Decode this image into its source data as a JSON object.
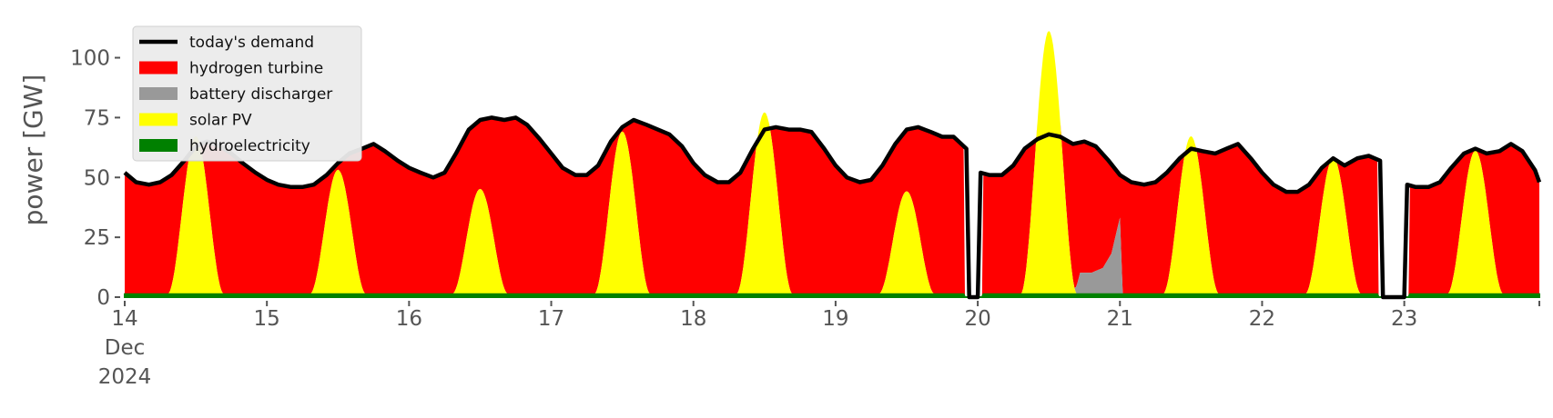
{
  "chart_data": {
    "type": "area",
    "title": "",
    "xlabel": "",
    "ylabel": "power [GW]",
    "x_unit": "days since 14 Dec 2024 00:00 (hourly samples)",
    "xlim": [
      0,
      9.95
    ],
    "ylim": [
      0,
      115
    ],
    "x_ticks": [
      {
        "x": 0,
        "lines": [
          "14",
          "Dec",
          "2024"
        ]
      },
      {
        "x": 1,
        "lines": [
          "15"
        ]
      },
      {
        "x": 2,
        "lines": [
          "16"
        ]
      },
      {
        "x": 3,
        "lines": [
          "17"
        ]
      },
      {
        "x": 4,
        "lines": [
          "18"
        ]
      },
      {
        "x": 5,
        "lines": [
          "19"
        ]
      },
      {
        "x": 6,
        "lines": [
          "20"
        ]
      },
      {
        "x": 7,
        "lines": [
          "21"
        ]
      },
      {
        "x": 8,
        "lines": [
          "22"
        ]
      },
      {
        "x": 9,
        "lines": [
          "23"
        ]
      }
    ],
    "y_ticks": [
      0,
      25,
      50,
      75,
      100
    ],
    "grid": false,
    "legend_position": "top-left",
    "legend": [
      {
        "label": "today's demand",
        "kind": "line",
        "color": "#000000"
      },
      {
        "label": "hydrogen turbine",
        "kind": "patch",
        "color": "#ff0000"
      },
      {
        "label": "battery discharger",
        "kind": "patch",
        "color": "#999999"
      },
      {
        "label": "solar PV",
        "kind": "patch",
        "color": "#ffff00"
      },
      {
        "label": "hydroelectricity",
        "kind": "patch",
        "color": "#008000"
      }
    ],
    "series": [
      {
        "name": "hydroelectricity",
        "kind": "stacked-area",
        "color": "#008000",
        "constant_value": 1.2
      },
      {
        "name": "solar PV",
        "kind": "stacked-area",
        "color": "#ffff00",
        "peaks": [
          {
            "center": 0.5,
            "peak": 66
          },
          {
            "center": 1.5,
            "peak": 52
          },
          {
            "center": 2.5,
            "peak": 44
          },
          {
            "center": 3.5,
            "peak": 68
          },
          {
            "center": 4.5,
            "peak": 76
          },
          {
            "center": 5.5,
            "peak": 43
          },
          {
            "center": 6.5,
            "peak": 110
          },
          {
            "center": 7.5,
            "peak": 66
          },
          {
            "center": 8.5,
            "peak": 57
          },
          {
            "center": 9.5,
            "peak": 60
          }
        ]
      },
      {
        "name": "battery discharger",
        "kind": "stacked-area",
        "color": "#999999",
        "points": [
          [
            6.68,
            0
          ],
          [
            6.72,
            9
          ],
          [
            6.8,
            9
          ],
          [
            6.88,
            11
          ],
          [
            6.94,
            17
          ],
          [
            7.0,
            32
          ],
          [
            7.02,
            0
          ]
        ]
      },
      {
        "name": "hydrogen turbine",
        "kind": "stacked-area",
        "color": "#ff0000",
        "fills_to": "today's demand"
      },
      {
        "name": "today's demand",
        "kind": "line",
        "color": "#000000",
        "points": [
          [
            0,
            52
          ],
          [
            0.08,
            48
          ],
          [
            0.17,
            47
          ],
          [
            0.25,
            48
          ],
          [
            0.33,
            51
          ],
          [
            0.42,
            57
          ],
          [
            0.5,
            63
          ],
          [
            0.58,
            65
          ],
          [
            0.67,
            63
          ],
          [
            0.75,
            60
          ],
          [
            0.83,
            56
          ],
          [
            0.92,
            52
          ],
          [
            1,
            49
          ],
          [
            1.08,
            47
          ],
          [
            1.17,
            46
          ],
          [
            1.25,
            46
          ],
          [
            1.33,
            47
          ],
          [
            1.42,
            51
          ],
          [
            1.5,
            56
          ],
          [
            1.58,
            60
          ],
          [
            1.67,
            62
          ],
          [
            1.75,
            64
          ],
          [
            1.83,
            61
          ],
          [
            1.92,
            57
          ],
          [
            2,
            54
          ],
          [
            2.08,
            52
          ],
          [
            2.17,
            50
          ],
          [
            2.25,
            52
          ],
          [
            2.33,
            60
          ],
          [
            2.42,
            70
          ],
          [
            2.5,
            74
          ],
          [
            2.58,
            75
          ],
          [
            2.67,
            74
          ],
          [
            2.75,
            75
          ],
          [
            2.83,
            72
          ],
          [
            2.92,
            66
          ],
          [
            3,
            60
          ],
          [
            3.08,
            54
          ],
          [
            3.17,
            51
          ],
          [
            3.25,
            51
          ],
          [
            3.33,
            55
          ],
          [
            3.42,
            65
          ],
          [
            3.5,
            71
          ],
          [
            3.58,
            74
          ],
          [
            3.67,
            72
          ],
          [
            3.75,
            70
          ],
          [
            3.83,
            68
          ],
          [
            3.92,
            63
          ],
          [
            4,
            56
          ],
          [
            4.08,
            51
          ],
          [
            4.17,
            48
          ],
          [
            4.25,
            48
          ],
          [
            4.33,
            52
          ],
          [
            4.42,
            62
          ],
          [
            4.5,
            70
          ],
          [
            4.58,
            71
          ],
          [
            4.67,
            70
          ],
          [
            4.75,
            70
          ],
          [
            4.83,
            69
          ],
          [
            4.92,
            62
          ],
          [
            5,
            55
          ],
          [
            5.08,
            50
          ],
          [
            5.17,
            48
          ],
          [
            5.25,
            49
          ],
          [
            5.33,
            55
          ],
          [
            5.42,
            64
          ],
          [
            5.5,
            70
          ],
          [
            5.58,
            71
          ],
          [
            5.67,
            69
          ],
          [
            5.75,
            67
          ],
          [
            5.83,
            67
          ],
          [
            5.92,
            62
          ],
          [
            5.94,
            0
          ],
          [
            6.0,
            0
          ],
          [
            6.02,
            52
          ],
          [
            6.08,
            51
          ],
          [
            6.17,
            51
          ],
          [
            6.25,
            55
          ],
          [
            6.33,
            62
          ],
          [
            6.42,
            66
          ],
          [
            6.5,
            68
          ],
          [
            6.58,
            67
          ],
          [
            6.67,
            64
          ],
          [
            6.75,
            65
          ],
          [
            6.83,
            63
          ],
          [
            6.92,
            57
          ],
          [
            7,
            51
          ],
          [
            7.08,
            48
          ],
          [
            7.17,
            47
          ],
          [
            7.25,
            48
          ],
          [
            7.33,
            52
          ],
          [
            7.42,
            58
          ],
          [
            7.5,
            62
          ],
          [
            7.58,
            61
          ],
          [
            7.67,
            60
          ],
          [
            7.75,
            62
          ],
          [
            7.83,
            64
          ],
          [
            7.92,
            58
          ],
          [
            8,
            52
          ],
          [
            8.08,
            47
          ],
          [
            8.17,
            44
          ],
          [
            8.25,
            44
          ],
          [
            8.33,
            47
          ],
          [
            8.42,
            54
          ],
          [
            8.5,
            58
          ],
          [
            8.58,
            55
          ],
          [
            8.67,
            58
          ],
          [
            8.75,
            59
          ],
          [
            8.83,
            57
          ],
          [
            8.85,
            0
          ],
          [
            9,
            0
          ],
          [
            9.02,
            47
          ],
          [
            9.08,
            46
          ],
          [
            9.17,
            46
          ],
          [
            9.25,
            48
          ],
          [
            9.33,
            54
          ],
          [
            9.42,
            60
          ],
          [
            9.5,
            62
          ],
          [
            9.58,
            60
          ],
          [
            9.67,
            61
          ],
          [
            9.75,
            64
          ],
          [
            9.83,
            61
          ],
          [
            9.92,
            53
          ],
          [
            9.95,
            48
          ]
        ]
      }
    ]
  }
}
